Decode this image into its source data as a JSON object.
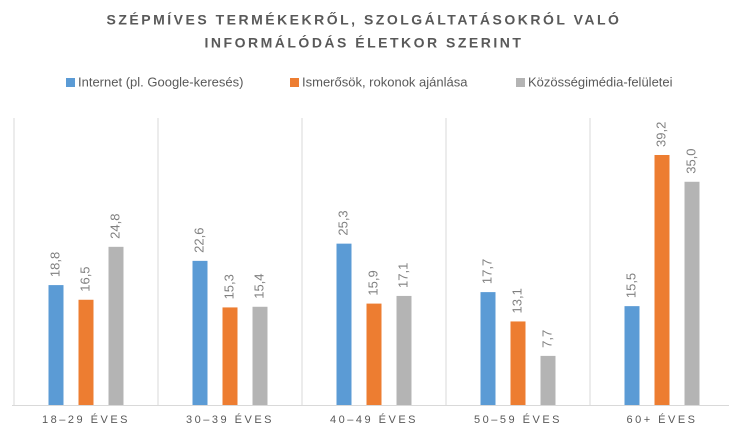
{
  "chart_data": {
    "type": "bar",
    "title": [
      "SZÉPMÍVES TERMÉKEKRŐL, SZOLGÁLTATÁSOKRÓL VALÓ",
      "INFORMÁLÓDÁS ÉLETKOR SZERINT"
    ],
    "categories": [
      "18–29 ÉVES",
      "30–39 ÉVES",
      "40–49 ÉVES",
      "50–59 ÉVES",
      "60+ ÉVES"
    ],
    "series": [
      {
        "name": "Internet (pl. Google-keresés)",
        "color": "#5b9bd5",
        "values": [
          18.8,
          22.6,
          25.3,
          17.7,
          15.5
        ],
        "value_labels": [
          "18,8",
          "22,6",
          "25,3",
          "17,7",
          "15,5"
        ]
      },
      {
        "name": "Ismerősök, rokonok ajánlása",
        "color": "#ed7d31",
        "values": [
          16.5,
          15.3,
          15.9,
          13.1,
          39.2
        ],
        "value_labels": [
          "16,5",
          "15,3",
          "15,9",
          "13,1",
          "39,2"
        ]
      },
      {
        "name": "Közösségimédia-felületei",
        "color": "#b4b4b4",
        "values": [
          24.8,
          15.4,
          17.1,
          7.7,
          35.0
        ],
        "value_labels": [
          "24,8",
          "15,4",
          "17,1",
          "7,7",
          "35,0"
        ]
      }
    ],
    "ylim": [
      0,
      45
    ]
  }
}
